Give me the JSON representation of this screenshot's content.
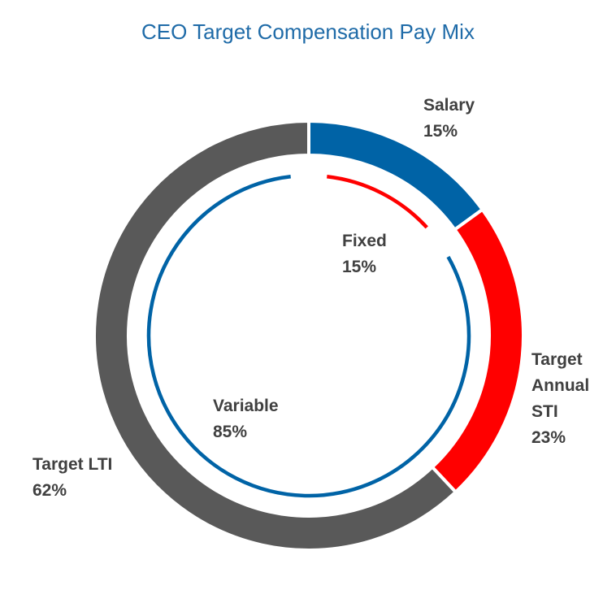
{
  "chart_data": {
    "type": "pie",
    "title": "CEO Target Compensation Pay Mix",
    "rings": [
      {
        "ring": "outer",
        "slices": [
          {
            "label": [
              "Salary"
            ],
            "value": 15,
            "display": "15%",
            "color": "#0063A6"
          },
          {
            "label": [
              "Target",
              "Annual",
              "STI"
            ],
            "value": 23,
            "display": "23%",
            "color": "#FF0000"
          },
          {
            "label": [
              "Target LTI"
            ],
            "value": 62,
            "display": "62%",
            "color": "#595959"
          }
        ]
      },
      {
        "ring": "inner",
        "slices": [
          {
            "label": [
              "Fixed"
            ],
            "value": 15,
            "display": "15%",
            "color": "#FF0000"
          },
          {
            "label": [
              "Variable"
            ],
            "value": 85,
            "display": "85%",
            "color": "#0063A6"
          }
        ]
      }
    ]
  }
}
